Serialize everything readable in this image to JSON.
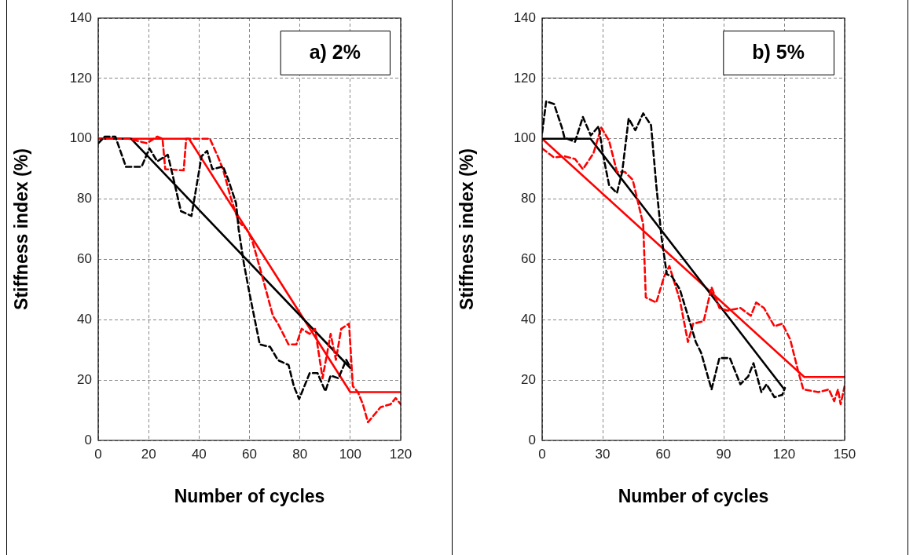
{
  "chart_data": [
    {
      "type": "line",
      "title": "a) 2%",
      "xlabel": "Number of cycles",
      "ylabel": "Stiffness index (%)",
      "xlim": [
        0,
        120
      ],
      "ylim": [
        0,
        140
      ],
      "xticks": [
        0,
        20,
        40,
        60,
        80,
        100,
        120
      ],
      "yticks": [
        0,
        20,
        40,
        60,
        80,
        100,
        120,
        140
      ],
      "grid": true,
      "marker": "none",
      "series": [
        {
          "color": "#000000",
          "line_style": "dashed",
          "x": [
            0,
            2.6,
            6.8,
            11,
            17.2,
            20.3,
            23.4,
            27.6,
            29.7,
            32.8,
            37,
            41,
            43.2,
            45.3,
            49.5,
            51.6,
            54.7,
            55.7,
            57.8,
            59.9,
            64.1,
            68.2,
            71.3,
            75.5,
            77.6,
            79.7,
            83.9,
            87,
            90.1,
            92.2,
            95.3,
            98.4,
            99.5
          ],
          "values": [
            98.5,
            100.7,
            100.7,
            90.7,
            90.7,
            96.8,
            92.5,
            94.7,
            87.3,
            76,
            74.4,
            94.2,
            96,
            89.9,
            90.8,
            86.4,
            78.6,
            70,
            58.6,
            49.2,
            31.8,
            31,
            26.6,
            25,
            18,
            13.7,
            22.3,
            22.3,
            16.3,
            21.5,
            20.6,
            26.7,
            25
          ]
        },
        {
          "color": "#ff0000",
          "line_style": "dashed",
          "x": [
            0,
            12,
            19.3,
            23.4,
            25.5,
            26.6,
            33.9,
            34.9,
            44.3,
            47.4,
            49.5,
            52.6,
            55.7,
            58.9,
            61,
            65.1,
            69.3,
            71.3,
            75.5,
            78.6,
            80.7,
            83.9,
            86,
            89,
            92.2,
            94.3,
            96.4,
            99.5,
            101,
            103,
            105,
            107,
            109,
            112,
            116,
            118,
            120
          ],
          "values": [
            100,
            100,
            98.5,
            100.7,
            100,
            89.9,
            89.5,
            100,
            100,
            94.2,
            89.9,
            80.4,
            72.5,
            70,
            66.5,
            54.3,
            41.3,
            38.7,
            31.8,
            31.8,
            37,
            35.3,
            37,
            20.6,
            35.3,
            26.7,
            37,
            38.7,
            18,
            16,
            12,
            6,
            8,
            11,
            12,
            14,
            12
          ]
        },
        {
          "color": "#000000",
          "line_style": "solid",
          "x": [
            0,
            13,
            100
          ],
          "values": [
            100,
            100,
            24
          ]
        },
        {
          "color": "#ff0000",
          "line_style": "solid",
          "x": [
            0,
            36,
            100,
            120
          ],
          "values": [
            100,
            100,
            16,
            16
          ]
        }
      ]
    },
    {
      "type": "line",
      "title": "b) 5%",
      "xlabel": "Number of cycles",
      "ylabel": "Stiffness index (%)",
      "xlim": [
        0,
        150
      ],
      "ylim": [
        0,
        140
      ],
      "xticks": [
        0,
        30,
        60,
        90,
        120,
        150
      ],
      "yticks": [
        0,
        20,
        40,
        60,
        80,
        100,
        120,
        140
      ],
      "grid": true,
      "marker": "none",
      "series": [
        {
          "color": "#000000",
          "line_style": "dashed",
          "x": [
            0,
            2,
            5.9,
            9.8,
            11.1,
            16.3,
            20.2,
            24.1,
            28,
            30.6,
            33.2,
            37.1,
            39.7,
            42.9,
            46.2,
            50.1,
            54,
            56.6,
            59.2,
            61.8,
            64.4,
            68.3,
            72.3,
            76.2,
            78.8,
            84,
            87.9,
            93.1,
            98.3,
            102.2,
            104.8,
            108.7,
            111.3,
            115.2,
            119.1,
            120.4
          ],
          "values": [
            102,
            112.4,
            111.5,
            103.7,
            100.3,
            99,
            107.2,
            101.1,
            104.1,
            93.3,
            84.6,
            82,
            89,
            106.7,
            102.8,
            108.4,
            104.5,
            84.6,
            67.3,
            55.1,
            54.3,
            50,
            41.3,
            32.6,
            29.1,
            16.9,
            27.3,
            27.3,
            18.6,
            21.2,
            25.6,
            16,
            18.6,
            14.3,
            15.1,
            17.4
          ]
        },
        {
          "color": "#ff0000",
          "line_style": "dashed",
          "x": [
            0,
            5.9,
            11.1,
            16.3,
            20.2,
            25.4,
            29.3,
            33.2,
            37.1,
            41,
            44.9,
            50.1,
            51.4,
            56.6,
            60.5,
            63.1,
            68.3,
            72.3,
            74.9,
            80.1,
            84,
            87.9,
            91.8,
            98.3,
            103.5,
            106.1,
            110,
            115.2,
            119.1,
            123,
            126.9,
            129.5,
            136.9,
            142.2,
            144.8,
            146.7,
            148,
            150
          ],
          "values": [
            96.8,
            93.8,
            94.2,
            93.3,
            89.9,
            95.1,
            103.7,
            99.3,
            89,
            89,
            86.4,
            71.7,
            47.4,
            45.7,
            54.3,
            57.8,
            46.5,
            32.6,
            38.7,
            39.5,
            50.8,
            43.9,
            43,
            43.9,
            41.3,
            45.7,
            43.9,
            37.8,
            38.7,
            33.5,
            23.1,
            16.9,
            16,
            16.9,
            13,
            16.9,
            12,
            18
          ]
        },
        {
          "color": "#000000",
          "line_style": "solid",
          "x": [
            0,
            24,
            120
          ],
          "values": [
            100,
            100,
            17
          ]
        },
        {
          "color": "#ff0000",
          "line_style": "solid",
          "x": [
            0,
            130,
            150
          ],
          "values": [
            100,
            21,
            21
          ]
        }
      ]
    }
  ]
}
